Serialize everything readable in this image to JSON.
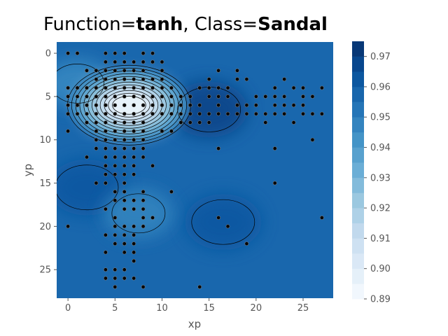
{
  "title": {
    "prefix": "Function=",
    "function": "tanh",
    "middle": ", Class=",
    "class": "Sandal"
  },
  "chart_data": {
    "type": "heatmap",
    "subtype": "filled-contour with scatter overlay",
    "xlabel": "xp",
    "ylabel": "yp",
    "xlim": [
      -1.2,
      28.2
    ],
    "ylim": [
      28.3,
      -1.3
    ],
    "y_inverted": true,
    "xticks": [
      0,
      5,
      10,
      15,
      20,
      25
    ],
    "yticks": [
      0,
      5,
      10,
      15,
      20,
      25
    ],
    "grid": false,
    "colormap": "Blues",
    "colorbar": {
      "min": 0.89,
      "max": 0.975,
      "ticks": [
        0.89,
        0.9,
        0.91,
        0.92,
        0.93,
        0.94,
        0.95,
        0.96,
        0.97
      ],
      "levels": [
        0.89,
        0.895,
        0.9,
        0.905,
        0.91,
        0.915,
        0.92,
        0.925,
        0.93,
        0.935,
        0.94,
        0.945,
        0.95,
        0.955,
        0.96,
        0.965,
        0.97,
        0.975
      ]
    },
    "base_value": 0.957,
    "field_features": [
      {
        "x": 6.5,
        "y": 6.0,
        "value": 0.89,
        "note": "lowest-value region, near white"
      },
      {
        "x": 1.0,
        "y": 3.5,
        "value": 0.947,
        "note": "lighter band upper-left"
      },
      {
        "x": 15.0,
        "y": 6.5,
        "value": 0.968,
        "note": "darkest region"
      },
      {
        "x": 2.0,
        "y": 15.5,
        "value": 0.962,
        "note": "darker region left"
      },
      {
        "x": 7.5,
        "y": 18.5,
        "value": 0.948,
        "note": "lighter region lower-middle"
      },
      {
        "x": 16.5,
        "y": 19.5,
        "value": 0.962,
        "note": "small darker region"
      }
    ],
    "points": [
      [
        0,
        0
      ],
      [
        1,
        0
      ],
      [
        4,
        0
      ],
      [
        5,
        0
      ],
      [
        6,
        0
      ],
      [
        8,
        0
      ],
      [
        9,
        0
      ],
      [
        4,
        1
      ],
      [
        5,
        1
      ],
      [
        6,
        1
      ],
      [
        7,
        1
      ],
      [
        8,
        1
      ],
      [
        9,
        1
      ],
      [
        10,
        1
      ],
      [
        2,
        2
      ],
      [
        3,
        2
      ],
      [
        4,
        2
      ],
      [
        5,
        2
      ],
      [
        6,
        2
      ],
      [
        7,
        2
      ],
      [
        8,
        2
      ],
      [
        10,
        2
      ],
      [
        16,
        2
      ],
      [
        18,
        2
      ],
      [
        3,
        3
      ],
      [
        4,
        3
      ],
      [
        5,
        3
      ],
      [
        6,
        3
      ],
      [
        7,
        3
      ],
      [
        8,
        3
      ],
      [
        9,
        3
      ],
      [
        10,
        3
      ],
      [
        15,
        3
      ],
      [
        18,
        3
      ],
      [
        19,
        3
      ],
      [
        23,
        3
      ],
      [
        0,
        4
      ],
      [
        1,
        4
      ],
      [
        2,
        4
      ],
      [
        3,
        4
      ],
      [
        4,
        4
      ],
      [
        5,
        4
      ],
      [
        6,
        4
      ],
      [
        7,
        4
      ],
      [
        8,
        4
      ],
      [
        9,
        4
      ],
      [
        10,
        4
      ],
      [
        11,
        4
      ],
      [
        14,
        4
      ],
      [
        15,
        4
      ],
      [
        16,
        4
      ],
      [
        17,
        4
      ],
      [
        22,
        4
      ],
      [
        24,
        4
      ],
      [
        25,
        4
      ],
      [
        27,
        4
      ],
      [
        0,
        5
      ],
      [
        1,
        5
      ],
      [
        2,
        5
      ],
      [
        3,
        5
      ],
      [
        4,
        5
      ],
      [
        5,
        5
      ],
      [
        6,
        5
      ],
      [
        7,
        5
      ],
      [
        8,
        5
      ],
      [
        9,
        5
      ],
      [
        10,
        5
      ],
      [
        11,
        5
      ],
      [
        12,
        5
      ],
      [
        13,
        5
      ],
      [
        15,
        5
      ],
      [
        16,
        5
      ],
      [
        17,
        5
      ],
      [
        20,
        5
      ],
      [
        21,
        5
      ],
      [
        22,
        5
      ],
      [
        23,
        5
      ],
      [
        25,
        5
      ],
      [
        26,
        5
      ],
      [
        0,
        6
      ],
      [
        1,
        6
      ],
      [
        2,
        6
      ],
      [
        3,
        6
      ],
      [
        4,
        6
      ],
      [
        5,
        6
      ],
      [
        6,
        6
      ],
      [
        7,
        6
      ],
      [
        8,
        6
      ],
      [
        9,
        6
      ],
      [
        10,
        6
      ],
      [
        11,
        6
      ],
      [
        12,
        6
      ],
      [
        13,
        6
      ],
      [
        14,
        6
      ],
      [
        16,
        6
      ],
      [
        18,
        6
      ],
      [
        19,
        6
      ],
      [
        20,
        6
      ],
      [
        22,
        6
      ],
      [
        23,
        6
      ],
      [
        24,
        6
      ],
      [
        25,
        6
      ],
      [
        0,
        7
      ],
      [
        1,
        7
      ],
      [
        2,
        7
      ],
      [
        3,
        7
      ],
      [
        4,
        7
      ],
      [
        5,
        7
      ],
      [
        6,
        7
      ],
      [
        7,
        7
      ],
      [
        8,
        7
      ],
      [
        9,
        7
      ],
      [
        10,
        7
      ],
      [
        11,
        7
      ],
      [
        12,
        7
      ],
      [
        13,
        7
      ],
      [
        14,
        7
      ],
      [
        15,
        7
      ],
      [
        16,
        7
      ],
      [
        17,
        7
      ],
      [
        18,
        7
      ],
      [
        19,
        7
      ],
      [
        20,
        7
      ],
      [
        21,
        7
      ],
      [
        22,
        7
      ],
      [
        23,
        7
      ],
      [
        25,
        7
      ],
      [
        26,
        7
      ],
      [
        27,
        7
      ],
      [
        2,
        8
      ],
      [
        3,
        8
      ],
      [
        4,
        8
      ],
      [
        5,
        8
      ],
      [
        6,
        8
      ],
      [
        7,
        8
      ],
      [
        8,
        8
      ],
      [
        12,
        8
      ],
      [
        13,
        8
      ],
      [
        14,
        8
      ],
      [
        15,
        8
      ],
      [
        21,
        8
      ],
      [
        24,
        8
      ],
      [
        0,
        9
      ],
      [
        3,
        9
      ],
      [
        4,
        9
      ],
      [
        5,
        9
      ],
      [
        6,
        9
      ],
      [
        7,
        9
      ],
      [
        8,
        9
      ],
      [
        10,
        9
      ],
      [
        11,
        9
      ],
      [
        3,
        10
      ],
      [
        4,
        10
      ],
      [
        5,
        10
      ],
      [
        6,
        10
      ],
      [
        7,
        10
      ],
      [
        8,
        10
      ],
      [
        26,
        10
      ],
      [
        3,
        11
      ],
      [
        4,
        11
      ],
      [
        5,
        11
      ],
      [
        6,
        11
      ],
      [
        7,
        11
      ],
      [
        8,
        11
      ],
      [
        16,
        11
      ],
      [
        22,
        11
      ],
      [
        2,
        12
      ],
      [
        4,
        12
      ],
      [
        5,
        12
      ],
      [
        6,
        12
      ],
      [
        7,
        12
      ],
      [
        8,
        12
      ],
      [
        4,
        13
      ],
      [
        5,
        13
      ],
      [
        6,
        13
      ],
      [
        7,
        13
      ],
      [
        9,
        13
      ],
      [
        4,
        14
      ],
      [
        5,
        14
      ],
      [
        6,
        14
      ],
      [
        7,
        14
      ],
      [
        3,
        15
      ],
      [
        4,
        15
      ],
      [
        6,
        15
      ],
      [
        22,
        15
      ],
      [
        5,
        16
      ],
      [
        6,
        16
      ],
      [
        8,
        16
      ],
      [
        11,
        16
      ],
      [
        5,
        17
      ],
      [
        6,
        17
      ],
      [
        7,
        17
      ],
      [
        8,
        17
      ],
      [
        4,
        18
      ],
      [
        6,
        18
      ],
      [
        7,
        18
      ],
      [
        8,
        18
      ],
      [
        5,
        19
      ],
      [
        8,
        19
      ],
      [
        9,
        19
      ],
      [
        16,
        19
      ],
      [
        0,
        20
      ],
      [
        5,
        20
      ],
      [
        6,
        20
      ],
      [
        7,
        20
      ],
      [
        8,
        20
      ],
      [
        17,
        20
      ],
      [
        4,
        21
      ],
      [
        5,
        21
      ],
      [
        6,
        21
      ],
      [
        7,
        21
      ],
      [
        5,
        22
      ],
      [
        6,
        22
      ],
      [
        7,
        22
      ],
      [
        19,
        22
      ],
      [
        4,
        23
      ],
      [
        6,
        23
      ],
      [
        7,
        23
      ],
      [
        7,
        24
      ],
      [
        4,
        25
      ],
      [
        5,
        25
      ],
      [
        6,
        25
      ],
      [
        4,
        26
      ],
      [
        5,
        26
      ],
      [
        6,
        26
      ],
      [
        7,
        26
      ],
      [
        5,
        27
      ],
      [
        8,
        27
      ],
      [
        14,
        27
      ],
      [
        27,
        19
      ]
    ]
  }
}
